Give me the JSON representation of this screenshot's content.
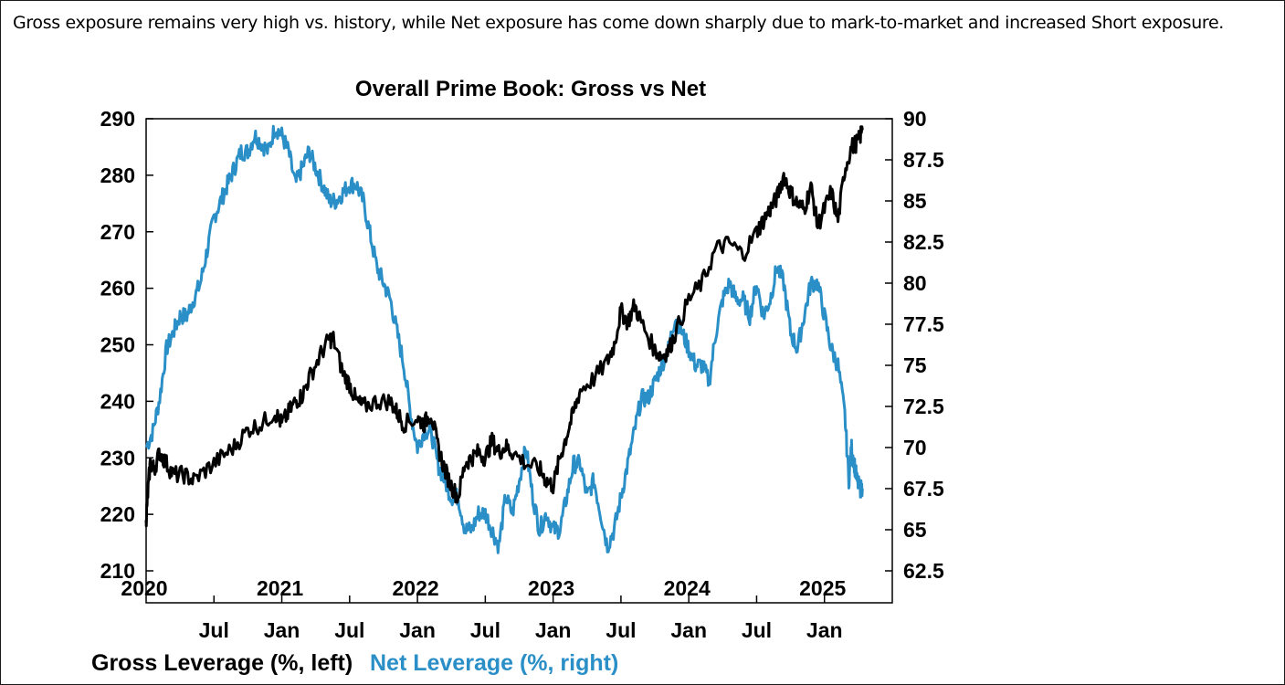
{
  "caption": "Gross exposure remains very high vs. history, while Net exposure has come down sharply due to mark-to-market and increased Short exposure.",
  "colors": {
    "gross": "#000000",
    "net": "#2a8fc7",
    "axis": "#000000"
  },
  "chart_data": {
    "type": "line",
    "title": "Overall Prime Book: Gross vs Net",
    "x_start": 2020.0,
    "x_end": 2025.5,
    "y_left": {
      "min": 210,
      "max": 290,
      "ticks": [
        210,
        220,
        230,
        240,
        250,
        260,
        270,
        280,
        290
      ],
      "tick_labels": [
        "210",
        "220",
        "230",
        "240",
        "250",
        "260",
        "270",
        "280",
        "290"
      ]
    },
    "y_right": {
      "min": 62.5,
      "max": 90,
      "ticks": [
        62.5,
        65,
        67.5,
        70,
        72.5,
        75,
        77.5,
        80,
        82.5,
        85,
        87.5,
        90
      ],
      "tick_labels": [
        "62.5",
        "65",
        "67.5",
        "70",
        "72.5",
        "75",
        "77.5",
        "80",
        "82.5",
        "85",
        "87.5",
        "90"
      ]
    },
    "year_labels": [
      {
        "t": 2020.0,
        "label": "2020"
      },
      {
        "t": 2021.0,
        "label": "2021"
      },
      {
        "t": 2022.0,
        "label": "2022"
      },
      {
        "t": 2023.0,
        "label": "2023"
      },
      {
        "t": 2024.0,
        "label": "2024"
      },
      {
        "t": 2025.0,
        "label": "2025"
      }
    ],
    "month_ticks": [
      {
        "t": 2020.5,
        "label": "Jul"
      },
      {
        "t": 2021.0,
        "label": "Jan"
      },
      {
        "t": 2021.5,
        "label": "Jul"
      },
      {
        "t": 2022.0,
        "label": "Jan"
      },
      {
        "t": 2022.5,
        "label": "Jul"
      },
      {
        "t": 2023.0,
        "label": "Jan"
      },
      {
        "t": 2023.5,
        "label": "Jul"
      },
      {
        "t": 2024.0,
        "label": "Jan"
      },
      {
        "t": 2024.5,
        "label": "Jul"
      },
      {
        "t": 2025.0,
        "label": "Jan"
      }
    ],
    "series": [
      {
        "name": "Gross Leverage (%, left)",
        "axis": "left",
        "color": "#000000",
        "x": [
          2020.0,
          2020.01,
          2020.03,
          2020.06,
          2020.1,
          2020.15,
          2020.2,
          2020.28,
          2020.35,
          2020.45,
          2020.55,
          2020.65,
          2020.75,
          2020.85,
          2020.95,
          2021.0,
          2021.05,
          2021.1,
          2021.15,
          2021.2,
          2021.28,
          2021.35,
          2021.38,
          2021.45,
          2021.5,
          2021.55,
          2021.6,
          2021.7,
          2021.8,
          2021.85,
          2021.9,
          2022.0,
          2022.05,
          2022.1,
          2022.15,
          2022.2,
          2022.25,
          2022.3,
          2022.35,
          2022.4,
          2022.45,
          2022.5,
          2022.55,
          2022.6,
          2022.65,
          2022.7,
          2022.8,
          2022.9,
          2022.95,
          2023.0,
          2023.05,
          2023.1,
          2023.15,
          2023.2,
          2023.3,
          2023.4,
          2023.45,
          2023.5,
          2023.55,
          2023.6,
          2023.65,
          2023.75,
          2023.8,
          2023.85,
          2023.9,
          2024.0,
          2024.1,
          2024.2,
          2024.3,
          2024.4,
          2024.5,
          2024.55,
          2024.6,
          2024.65,
          2024.7,
          2024.75,
          2024.8,
          2024.85,
          2024.9,
          2024.95,
          2025.0,
          2025.05,
          2025.1,
          2025.15,
          2025.2,
          2025.25,
          2025.28
        ],
        "y": [
          219,
          223,
          229,
          228,
          231,
          229,
          227,
          227,
          226,
          228,
          230,
          232,
          235,
          236,
          238,
          236,
          238,
          240,
          241,
          244,
          248,
          251,
          251,
          245,
          243,
          240,
          239,
          240,
          240,
          238,
          236,
          237,
          236,
          238,
          232,
          228,
          225,
          223,
          229,
          230,
          231,
          230,
          233,
          231,
          232,
          231,
          229,
          228,
          226,
          225,
          230,
          234,
          238,
          242,
          244,
          247,
          250,
          256,
          254,
          257,
          254,
          249,
          248,
          249,
          252,
          258,
          261,
          267,
          268,
          266,
          270,
          272,
          274,
          276,
          280,
          277,
          275,
          274,
          278,
          271,
          274,
          277,
          272,
          281,
          285,
          286,
          288
        ]
      },
      {
        "name": "Net Leverage (%, right)",
        "axis": "right",
        "color": "#2a8fc7",
        "x": [
          2020.0,
          2020.05,
          2020.1,
          2020.15,
          2020.2,
          2020.25,
          2020.3,
          2020.35,
          2020.4,
          2020.45,
          2020.5,
          2020.55,
          2020.6,
          2020.65,
          2020.7,
          2020.75,
          2020.8,
          2020.85,
          2020.9,
          2020.95,
          2021.0,
          2021.05,
          2021.1,
          2021.15,
          2021.2,
          2021.25,
          2021.3,
          2021.35,
          2021.4,
          2021.45,
          2021.5,
          2021.55,
          2021.6,
          2021.65,
          2021.7,
          2021.75,
          2021.8,
          2021.85,
          2021.9,
          2021.95,
          2022.0,
          2022.05,
          2022.1,
          2022.15,
          2022.2,
          2022.25,
          2022.3,
          2022.35,
          2022.4,
          2022.45,
          2022.5,
          2022.55,
          2022.6,
          2022.65,
          2022.7,
          2022.75,
          2022.8,
          2022.85,
          2022.9,
          2022.95,
          2023.0,
          2023.05,
          2023.1,
          2023.15,
          2023.2,
          2023.25,
          2023.3,
          2023.35,
          2023.4,
          2023.45,
          2023.5,
          2023.55,
          2023.6,
          2023.65,
          2023.7,
          2023.75,
          2023.8,
          2023.85,
          2023.9,
          2023.95,
          2024.0,
          2024.05,
          2024.1,
          2024.15,
          2024.2,
          2024.25,
          2024.3,
          2024.35,
          2024.4,
          2024.45,
          2024.5,
          2024.55,
          2024.6,
          2024.65,
          2024.7,
          2024.75,
          2024.8,
          2024.85,
          2024.9,
          2024.95,
          2025.0,
          2025.05,
          2025.1,
          2025.15,
          2025.18,
          2025.2,
          2025.22,
          2025.24,
          2025.26,
          2025.28
        ],
        "y": [
          70,
          71,
          73,
          76,
          77,
          78,
          78,
          79,
          80,
          82,
          84,
          85,
          86,
          87,
          88,
          88,
          89,
          88.5,
          88,
          89.5,
          89,
          88,
          86,
          87,
          88,
          87,
          86,
          85,
          85,
          85.5,
          86,
          86,
          85,
          83,
          81,
          80,
          79,
          77,
          75,
          72,
          70,
          71,
          71,
          69,
          68,
          67,
          67,
          65,
          65,
          66,
          66,
          65,
          64,
          67,
          66,
          68,
          70,
          67,
          65,
          66,
          65,
          65,
          67,
          69,
          69,
          67,
          68,
          66,
          64,
          65,
          67,
          69,
          71,
          73,
          73,
          74,
          75,
          76,
          78,
          77,
          76,
          75,
          75,
          74,
          77,
          79,
          80,
          79,
          79,
          78,
          80,
          78,
          79,
          81,
          80,
          77,
          76,
          78,
          80,
          80,
          78,
          76,
          75,
          72,
          68,
          70,
          69,
          68,
          67.5,
          67.5
        ]
      }
    ],
    "legend": [
      {
        "label": "Gross Leverage (%, left)",
        "color": "#000000"
      },
      {
        "label": "Net Leverage (%, right)",
        "color": "#2a8fc7"
      }
    ]
  }
}
